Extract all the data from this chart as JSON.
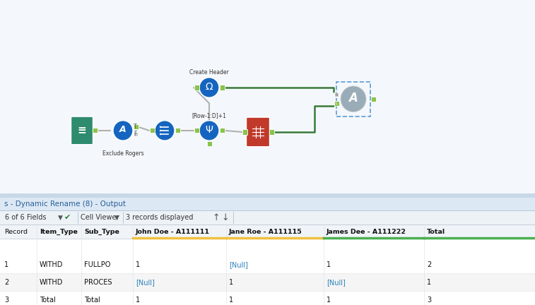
{
  "title_text": "s - Dynamic Rename (8) - Output",
  "columns": [
    "Record",
    "Item_Type",
    "Sub_Type",
    "John Doe - A111111",
    "Jane Roe - A111115",
    "James Dee - A111222",
    "Total"
  ],
  "rows": [
    [
      "1",
      "WITHD",
      "FULLPO",
      "1",
      "[Null]",
      "1",
      "2"
    ],
    [
      "2",
      "WITHD",
      "PROCES",
      "[Null]",
      "1",
      "[Null]",
      "1"
    ],
    [
      "3",
      "Total",
      "Total",
      "1",
      "1",
      "1",
      "3"
    ]
  ],
  "null_color": "#2980b9",
  "workflow_bg": "#f4f8fc",
  "panel_title_bg": "#dce6f0",
  "panel_toolbar_bg": "#edf2f7",
  "table_bg": "#ffffff",
  "table_stripe": "#f7f7f7",
  "underline_yellow": "#f0c040",
  "underline_green": "#4caf50",
  "node_blue": "#1565c0",
  "node_green": "#2e8b6e",
  "node_red": "#c0392b",
  "node_gray": "#9aacb8",
  "connector_green": "#5cb85c",
  "line_gray": "#b0b0b0",
  "col_starts": [
    2,
    52,
    115,
    188,
    320,
    458,
    600
  ],
  "col_ends": [
    52,
    115,
    188,
    320,
    458,
    600,
    757
  ]
}
